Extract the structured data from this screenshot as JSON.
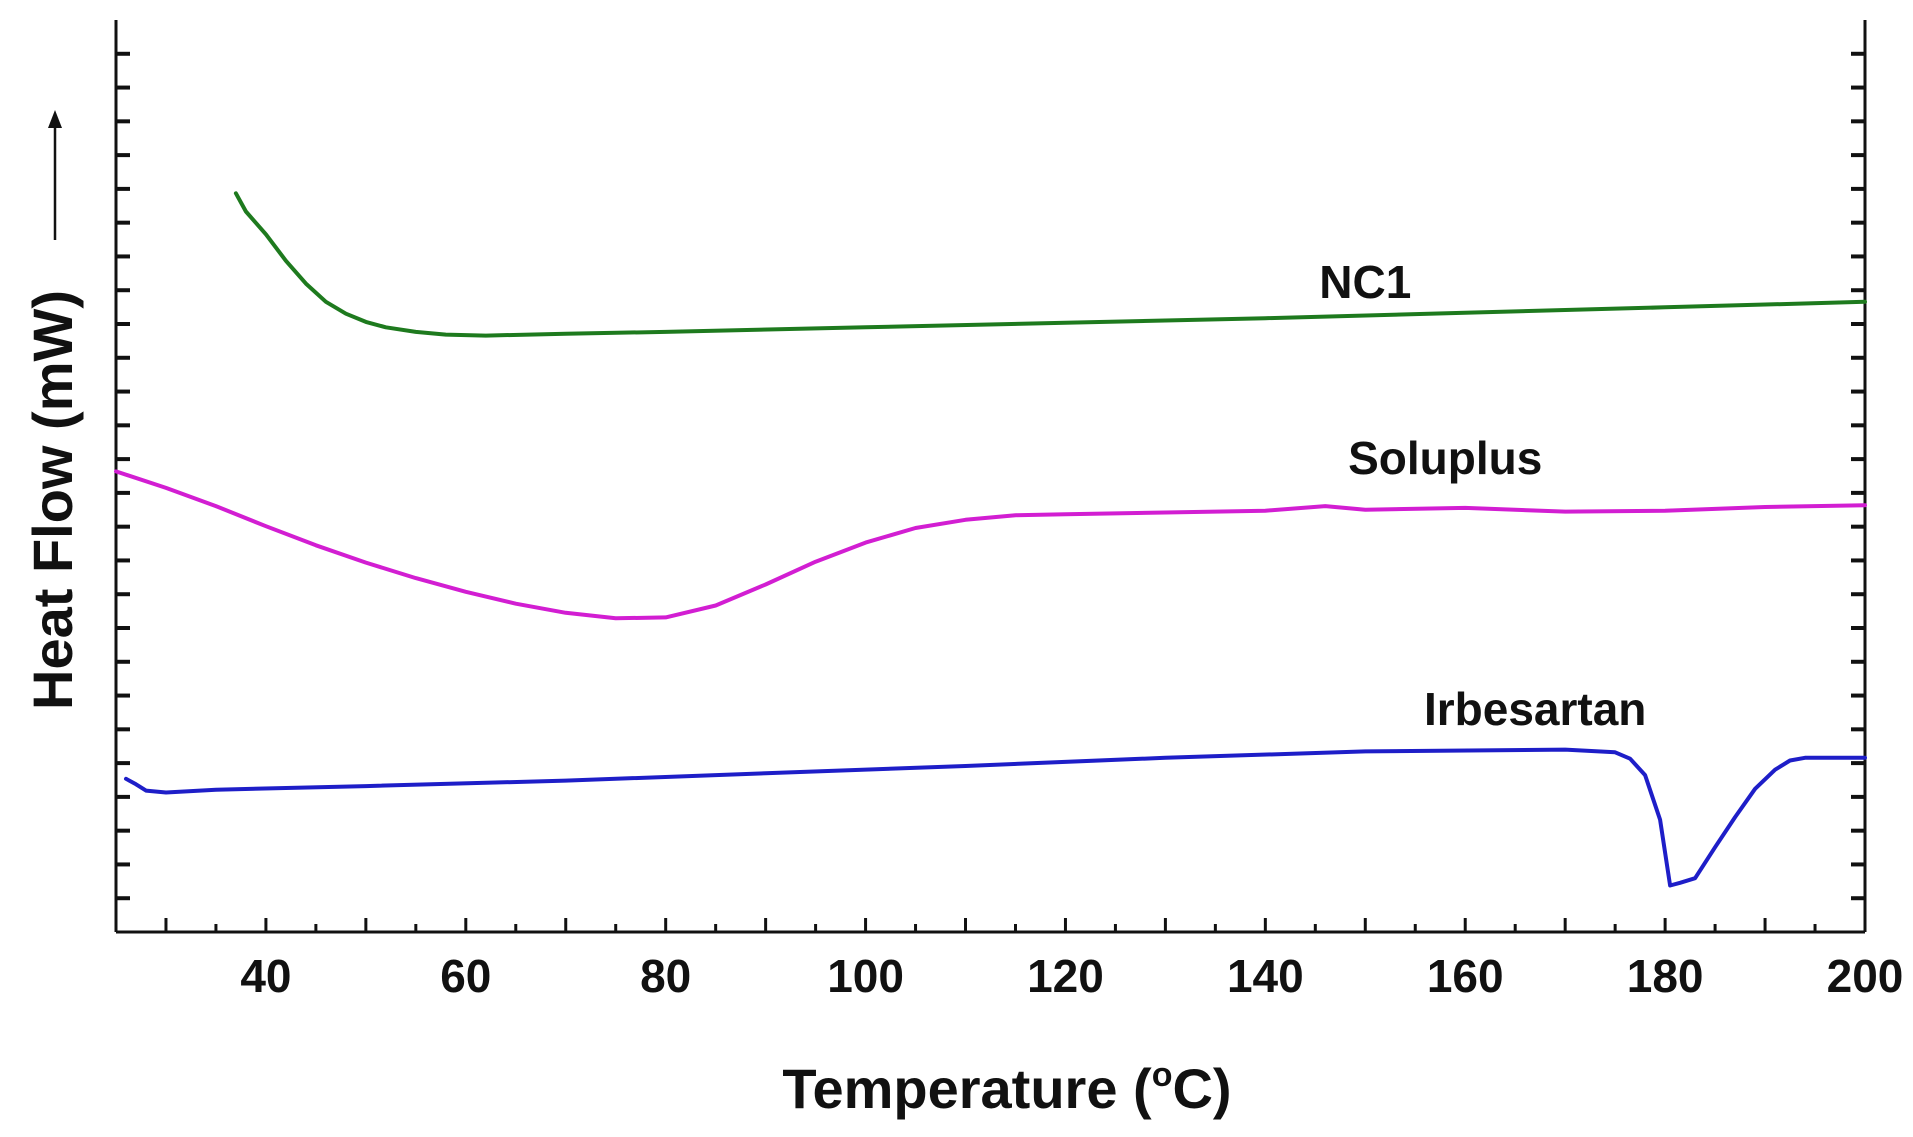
{
  "chart_data": {
    "type": "line",
    "title": "",
    "xlabel": "Temperature",
    "xlabel_unit_prefix": "(",
    "xlabel_unit_sup": "o",
    "xlabel_unit_suffix": "C)",
    "ylabel": "Heat Flow (mW)",
    "ylabel_arrow": "→",
    "xlim": [
      25,
      200
    ],
    "ylim": [
      0,
      100
    ],
    "x_ticks": [
      40,
      60,
      80,
      100,
      120,
      140,
      160,
      180,
      200
    ],
    "grid": false,
    "series": [
      {
        "name": "NC1",
        "color": "#1e7a1e",
        "label_at": [
          150,
          69.5
        ],
        "points": [
          [
            37,
            81
          ],
          [
            38,
            79
          ],
          [
            40,
            76.5
          ],
          [
            42,
            73.6
          ],
          [
            44,
            71.1
          ],
          [
            46,
            69.1
          ],
          [
            48,
            67.8
          ],
          [
            50,
            66.9
          ],
          [
            52,
            66.3
          ],
          [
            55,
            65.8
          ],
          [
            58,
            65.5
          ],
          [
            62,
            65.4
          ],
          [
            70,
            65.6
          ],
          [
            80,
            65.8
          ],
          [
            100,
            66.3
          ],
          [
            120,
            66.8
          ],
          [
            140,
            67.3
          ],
          [
            160,
            67.9
          ],
          [
            180,
            68.5
          ],
          [
            200,
            69.1
          ]
        ]
      },
      {
        "name": "Soluplus",
        "color": "#d21ed2",
        "label_at": [
          158,
          50.2
        ],
        "points": [
          [
            25,
            50.5
          ],
          [
            30,
            48.7
          ],
          [
            35,
            46.7
          ],
          [
            40,
            44.5
          ],
          [
            45,
            42.4
          ],
          [
            50,
            40.5
          ],
          [
            55,
            38.8
          ],
          [
            60,
            37.3
          ],
          [
            65,
            36.0
          ],
          [
            70,
            35.0
          ],
          [
            75,
            34.4
          ],
          [
            80,
            34.5
          ],
          [
            85,
            35.8
          ],
          [
            90,
            38.1
          ],
          [
            95,
            40.6
          ],
          [
            100,
            42.7
          ],
          [
            105,
            44.3
          ],
          [
            110,
            45.2
          ],
          [
            115,
            45.7
          ],
          [
            120,
            45.8
          ],
          [
            130,
            46.0
          ],
          [
            140,
            46.2
          ],
          [
            146,
            46.7
          ],
          [
            150,
            46.3
          ],
          [
            160,
            46.5
          ],
          [
            170,
            46.1
          ],
          [
            180,
            46.2
          ],
          [
            190,
            46.6
          ],
          [
            200,
            46.8
          ]
        ]
      },
      {
        "name": "Irbesartan",
        "color": "#1e1ec8",
        "label_at": [
          167,
          22.7
        ],
        "points": [
          [
            26,
            16.8
          ],
          [
            27,
            16.2
          ],
          [
            28,
            15.5
          ],
          [
            30,
            15.3
          ],
          [
            35,
            15.6
          ],
          [
            50,
            16.0
          ],
          [
            70,
            16.6
          ],
          [
            90,
            17.4
          ],
          [
            110,
            18.2
          ],
          [
            130,
            19.1
          ],
          [
            150,
            19.8
          ],
          [
            170,
            20.0
          ],
          [
            175,
            19.7
          ],
          [
            176.5,
            19.0
          ],
          [
            178,
            17.2
          ],
          [
            179.5,
            12.3
          ],
          [
            180.5,
            5.1
          ],
          [
            181.5,
            5.4
          ],
          [
            183,
            5.9
          ],
          [
            185,
            9.3
          ],
          [
            187,
            12.6
          ],
          [
            189,
            15.7
          ],
          [
            191,
            17.8
          ],
          [
            192.5,
            18.8
          ],
          [
            194,
            19.1
          ],
          [
            200,
            19.1
          ]
        ]
      }
    ]
  }
}
